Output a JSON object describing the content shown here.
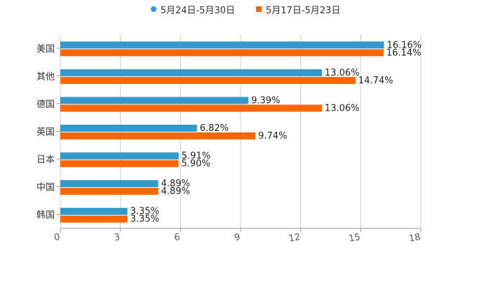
{
  "chart_data": {
    "type": "bar",
    "orientation": "horizontal",
    "title": "",
    "xlabel": "",
    "ylabel": "",
    "xlim": [
      0,
      18
    ],
    "x_ticks": [
      0,
      3,
      6,
      9,
      12,
      15,
      18
    ],
    "grid": true,
    "legend_position": "top-center",
    "categories": [
      "美国",
      "其他",
      "德国",
      "英国",
      "日本",
      "中国",
      "韩国"
    ],
    "series": [
      {
        "name": "5月24日-5月30日",
        "color": "#3399cc",
        "values": [
          16.16,
          13.06,
          9.39,
          6.82,
          5.91,
          4.89,
          3.35
        ],
        "labels": [
          "16.16%",
          "13.06%",
          "9.39%",
          "6.82%",
          "5.91%",
          "4.89%",
          "3.35%"
        ]
      },
      {
        "name": "5月17日-5月23日",
        "color": "#ff6600",
        "values": [
          16.14,
          14.74,
          13.06,
          9.74,
          5.9,
          4.89,
          3.35
        ],
        "labels": [
          "16.14%",
          "14.74%",
          "13.06%",
          "9.74%",
          "5.90%",
          "4.89%",
          "3.35%"
        ]
      }
    ]
  }
}
